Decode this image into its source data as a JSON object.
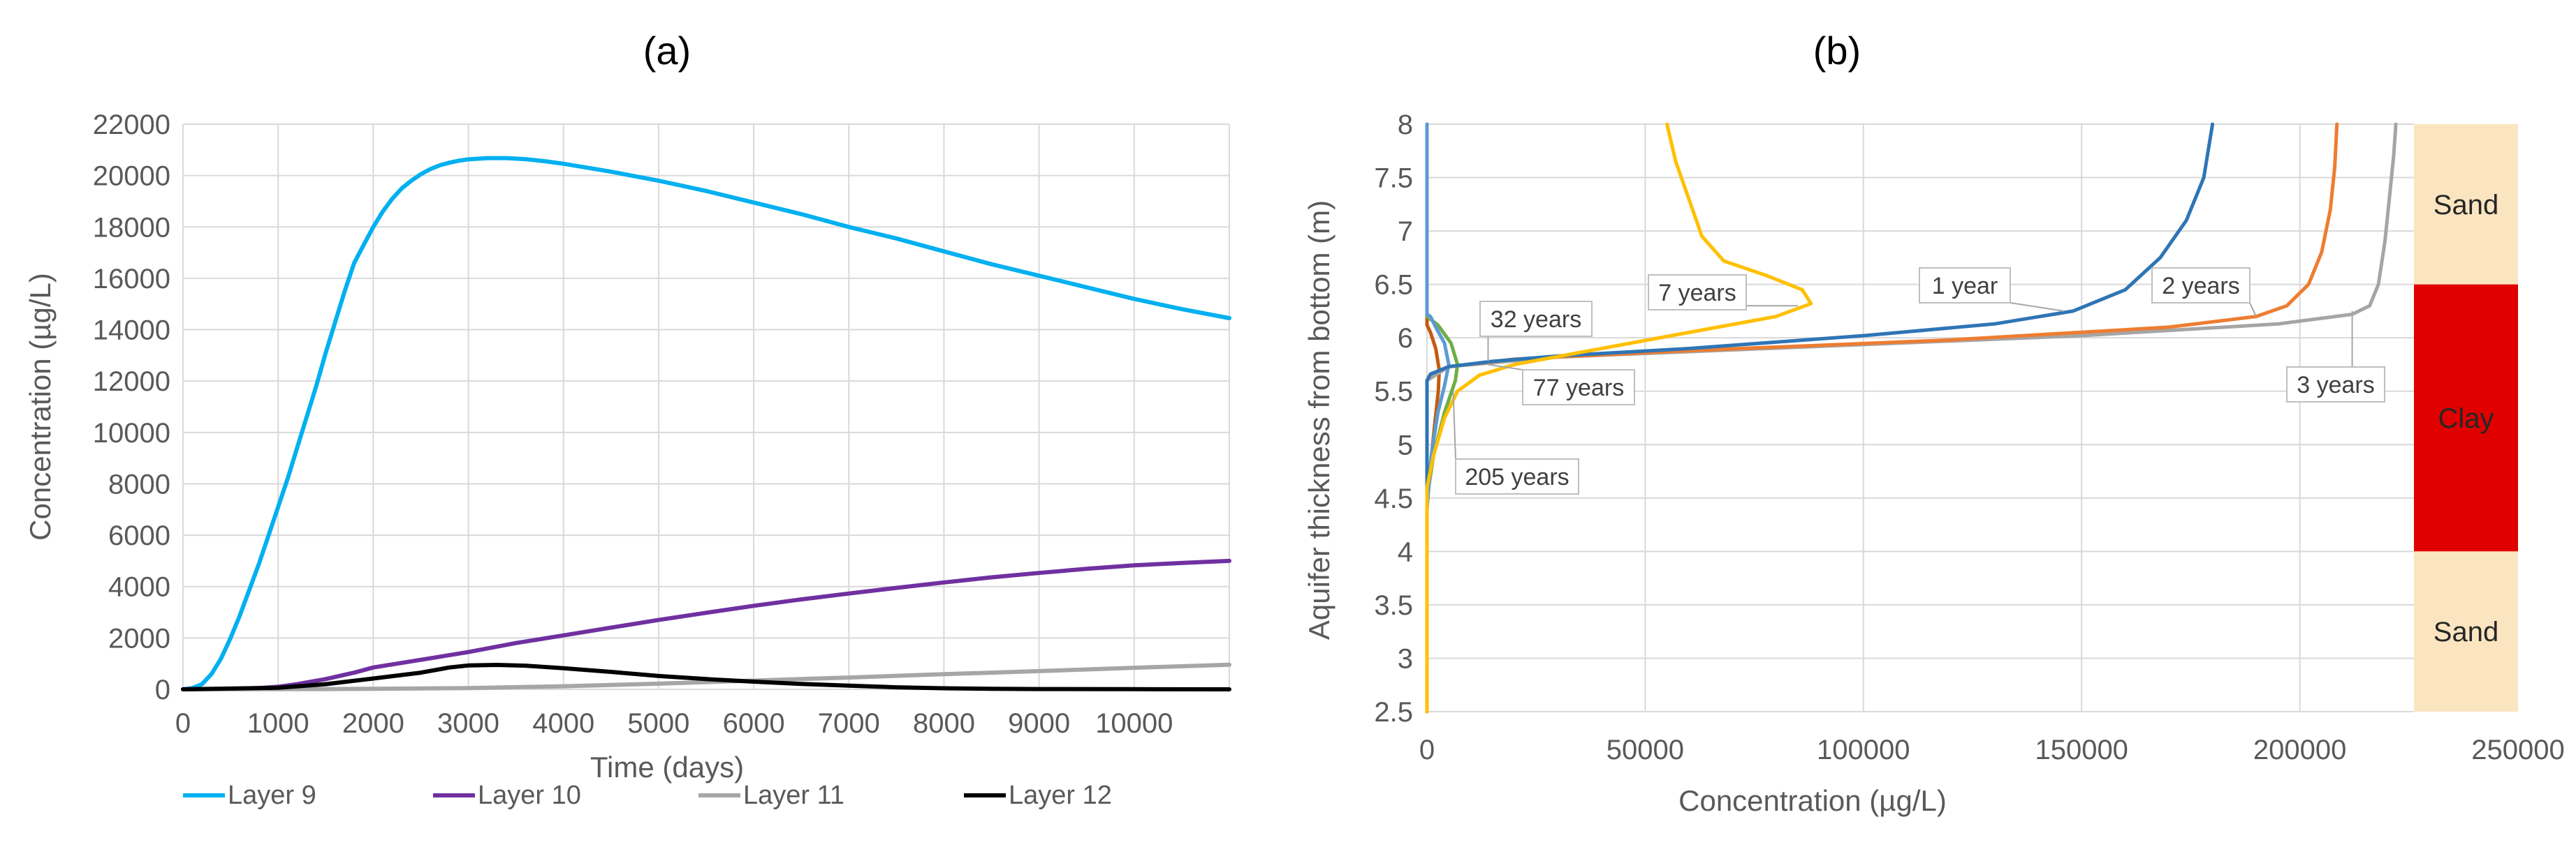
{
  "chart_data": [
    {
      "type": "line",
      "title": "(a)",
      "xlabel": "Time (days)",
      "ylabel": "Concentration (µg/L)",
      "xlim": [
        0,
        11000
      ],
      "ylim": [
        0,
        22000
      ],
      "xticks": [
        0,
        1000,
        2000,
        3000,
        4000,
        5000,
        6000,
        7000,
        8000,
        9000,
        10000
      ],
      "yticks": [
        0,
        2000,
        4000,
        6000,
        8000,
        10000,
        12000,
        14000,
        16000,
        18000,
        20000,
        22000
      ],
      "series": [
        {
          "name": "Layer 9",
          "color": "#00b0f0",
          "points": [
            [
              0,
              0
            ],
            [
              100,
              50
            ],
            [
              200,
              200
            ],
            [
              300,
              600
            ],
            [
              400,
              1200
            ],
            [
              500,
              2000
            ],
            [
              600,
              2900
            ],
            [
              700,
              3900
            ],
            [
              800,
              4900
            ],
            [
              900,
              6000
            ],
            [
              1000,
              7100
            ],
            [
              1100,
              8200
            ],
            [
              1200,
              9400
            ],
            [
              1300,
              10600
            ],
            [
              1400,
              11800
            ],
            [
              1500,
              13100
            ],
            [
              1600,
              14300
            ],
            [
              1700,
              15500
            ],
            [
              1800,
              16600
            ],
            [
              1900,
              17300
            ],
            [
              2000,
              18000
            ],
            [
              2100,
              18600
            ],
            [
              2200,
              19100
            ],
            [
              2300,
              19500
            ],
            [
              2400,
              19800
            ],
            [
              2500,
              20050
            ],
            [
              2600,
              20250
            ],
            [
              2700,
              20400
            ],
            [
              2800,
              20500
            ],
            [
              2900,
              20580
            ],
            [
              3000,
              20630
            ],
            [
              3200,
              20680
            ],
            [
              3400,
              20680
            ],
            [
              3600,
              20640
            ],
            [
              3800,
              20560
            ],
            [
              4000,
              20460
            ],
            [
              4500,
              20150
            ],
            [
              5000,
              19800
            ],
            [
              5500,
              19400
            ],
            [
              6000,
              18950
            ],
            [
              6500,
              18500
            ],
            [
              7000,
              18000
            ],
            [
              7500,
              17550
            ],
            [
              8000,
              17050
            ],
            [
              8500,
              16550
            ],
            [
              9000,
              16100
            ],
            [
              9500,
              15650
            ],
            [
              10000,
              15200
            ],
            [
              10500,
              14800
            ],
            [
              11000,
              14450
            ]
          ]
        },
        {
          "name": "Layer 10",
          "color": "#7030a0",
          "points": [
            [
              0,
              0
            ],
            [
              500,
              20
            ],
            [
              800,
              50
            ],
            [
              1000,
              100
            ],
            [
              1200,
              200
            ],
            [
              1500,
              400
            ],
            [
              1800,
              650
            ],
            [
              2000,
              850
            ],
            [
              2500,
              1150
            ],
            [
              3000,
              1450
            ],
            [
              3500,
              1800
            ],
            [
              4000,
              2100
            ],
            [
              4500,
              2400
            ],
            [
              5000,
              2700
            ],
            [
              5500,
              2980
            ],
            [
              6000,
              3250
            ],
            [
              6500,
              3500
            ],
            [
              7000,
              3730
            ],
            [
              7500,
              3950
            ],
            [
              8000,
              4160
            ],
            [
              8500,
              4360
            ],
            [
              9000,
              4530
            ],
            [
              9500,
              4690
            ],
            [
              10000,
              4830
            ],
            [
              10500,
              4920
            ],
            [
              11000,
              5000
            ]
          ]
        },
        {
          "name": "Layer 11",
          "color": "#a6a6a6",
          "points": [
            [
              0,
              0
            ],
            [
              1500,
              10
            ],
            [
              2000,
              20
            ],
            [
              3000,
              50
            ],
            [
              4000,
              120
            ],
            [
              5000,
              220
            ],
            [
              6000,
              340
            ],
            [
              7000,
              460
            ],
            [
              8000,
              590
            ],
            [
              9000,
              710
            ],
            [
              10000,
              840
            ],
            [
              11000,
              960
            ]
          ]
        },
        {
          "name": "Layer 12",
          "color": "#000000",
          "points": [
            [
              0,
              0
            ],
            [
              1000,
              60
            ],
            [
              1500,
              200
            ],
            [
              2000,
              420
            ],
            [
              2500,
              650
            ],
            [
              2800,
              850
            ],
            [
              3000,
              930
            ],
            [
              3300,
              950
            ],
            [
              3600,
              920
            ],
            [
              4000,
              820
            ],
            [
              4500,
              680
            ],
            [
              5000,
              520
            ],
            [
              5500,
              400
            ],
            [
              6000,
              300
            ],
            [
              6500,
              210
            ],
            [
              7000,
              140
            ],
            [
              7500,
              80
            ],
            [
              8000,
              40
            ],
            [
              8500,
              20
            ],
            [
              9000,
              10
            ],
            [
              10000,
              5
            ],
            [
              11000,
              0
            ]
          ]
        }
      ]
    },
    {
      "type": "line",
      "title": "(b)",
      "xlabel": "Concentration (µg/L)",
      "ylabel": "Aquifer thickness from bottom (m)",
      "xlim": [
        0,
        250000
      ],
      "ylim": [
        2.5,
        8
      ],
      "xticks": [
        0,
        50000,
        100000,
        150000,
        200000,
        250000
      ],
      "yticks": [
        2.5,
        3,
        3.5,
        4,
        4.5,
        5,
        5.5,
        6,
        6.5,
        7,
        7.5,
        8
      ],
      "layers": [
        {
          "name": "Sand",
          "from_m": 6.5,
          "to_m": 8.0,
          "color": "#fbe5c0"
        },
        {
          "name": "Clay",
          "from_m": 4.0,
          "to_m": 6.5,
          "color": "#e00000"
        },
        {
          "name": "Sand",
          "from_m": 2.5,
          "to_m": 4.0,
          "color": "#fbe5c0"
        }
      ],
      "series": [
        {
          "name": "1 year",
          "color": "#2e75b6",
          "points": [
            [
              0,
              2.5
            ],
            [
              0,
              5.6
            ],
            [
              800,
              5.66
            ],
            [
              5000,
              5.73
            ],
            [
              15000,
              5.78
            ],
            [
              30000,
              5.83
            ],
            [
              60000,
              5.9
            ],
            [
              100000,
              6.02
            ],
            [
              130000,
              6.13
            ],
            [
              148000,
              6.25
            ],
            [
              160000,
              6.45
            ],
            [
              168000,
              6.75
            ],
            [
              174000,
              7.1
            ],
            [
              178000,
              7.5
            ],
            [
              180000,
              8.0
            ]
          ]
        },
        {
          "name": "2 years",
          "color": "#ed7d31",
          "points": [
            [
              0,
              2.5
            ],
            [
              0,
              5.6
            ],
            [
              800,
              5.66
            ],
            [
              5000,
              5.73
            ],
            [
              20000,
              5.8
            ],
            [
              60000,
              5.88
            ],
            [
              120000,
              5.98
            ],
            [
              170000,
              6.1
            ],
            [
              190000,
              6.2
            ],
            [
              197000,
              6.3
            ],
            [
              202000,
              6.5
            ],
            [
              205000,
              6.8
            ],
            [
              207000,
              7.2
            ],
            [
              208000,
              7.6
            ],
            [
              208500,
              8.0
            ]
          ]
        },
        {
          "name": "3 years",
          "color": "#a5a5a5",
          "points": [
            [
              0,
              2.5
            ],
            [
              0,
              5.6
            ],
            [
              5000,
              5.73
            ],
            [
              30000,
              5.82
            ],
            [
              90000,
              5.92
            ],
            [
              150000,
              6.02
            ],
            [
              195000,
              6.13
            ],
            [
              212000,
              6.22
            ],
            [
              216000,
              6.3
            ],
            [
              218000,
              6.5
            ],
            [
              219500,
              6.9
            ],
            [
              220500,
              7.3
            ],
            [
              221500,
              7.7
            ],
            [
              222000,
              8.0
            ]
          ]
        },
        {
          "name": "7 years",
          "color": "#ffc000",
          "points": [
            [
              0,
              2.5
            ],
            [
              0,
              4.6
            ],
            [
              1500,
              4.9
            ],
            [
              4000,
              5.25
            ],
            [
              7000,
              5.5
            ],
            [
              12000,
              5.65
            ],
            [
              20000,
              5.75
            ],
            [
              40000,
              5.9
            ],
            [
              60000,
              6.05
            ],
            [
              80000,
              6.2
            ],
            [
              88000,
              6.32
            ],
            [
              86000,
              6.45
            ],
            [
              78000,
              6.58
            ],
            [
              68000,
              6.72
            ],
            [
              63000,
              6.95
            ],
            [
              60000,
              7.3
            ],
            [
              57000,
              7.65
            ],
            [
              55000,
              8.0
            ]
          ]
        },
        {
          "name": "32 years",
          "color": "#5b9bd5",
          "points": [
            [
              0,
              2.5
            ],
            [
              0,
              4.4
            ],
            [
              1000,
              4.9
            ],
            [
              2500,
              5.3
            ],
            [
              4000,
              5.55
            ],
            [
              5000,
              5.75
            ],
            [
              4000,
              5.95
            ],
            [
              2000,
              6.1
            ],
            [
              800,
              6.2
            ],
            [
              0,
              6.22
            ],
            [
              0,
              8.0
            ]
          ]
        },
        {
          "name": "77 years",
          "color": "#70ad47",
          "points": [
            [
              0,
              2.5
            ],
            [
              0,
              4.5
            ],
            [
              1500,
              4.9
            ],
            [
              4000,
              5.3
            ],
            [
              6500,
              5.6
            ],
            [
              7000,
              5.75
            ],
            [
              5500,
              5.95
            ],
            [
              2500,
              6.12
            ],
            [
              0,
              6.2
            ],
            [
              0,
              8.0
            ]
          ]
        },
        {
          "name": "205 years",
          "color": "#c55a11",
          "points": [
            [
              0,
              2.5
            ],
            [
              0,
              4.4
            ],
            [
              800,
              4.8
            ],
            [
              1800,
              5.2
            ],
            [
              2600,
              5.5
            ],
            [
              2800,
              5.7
            ],
            [
              2000,
              5.9
            ],
            [
              800,
              6.05
            ],
            [
              0,
              6.12
            ],
            [
              0,
              8.0
            ]
          ]
        }
      ]
    }
  ]
}
